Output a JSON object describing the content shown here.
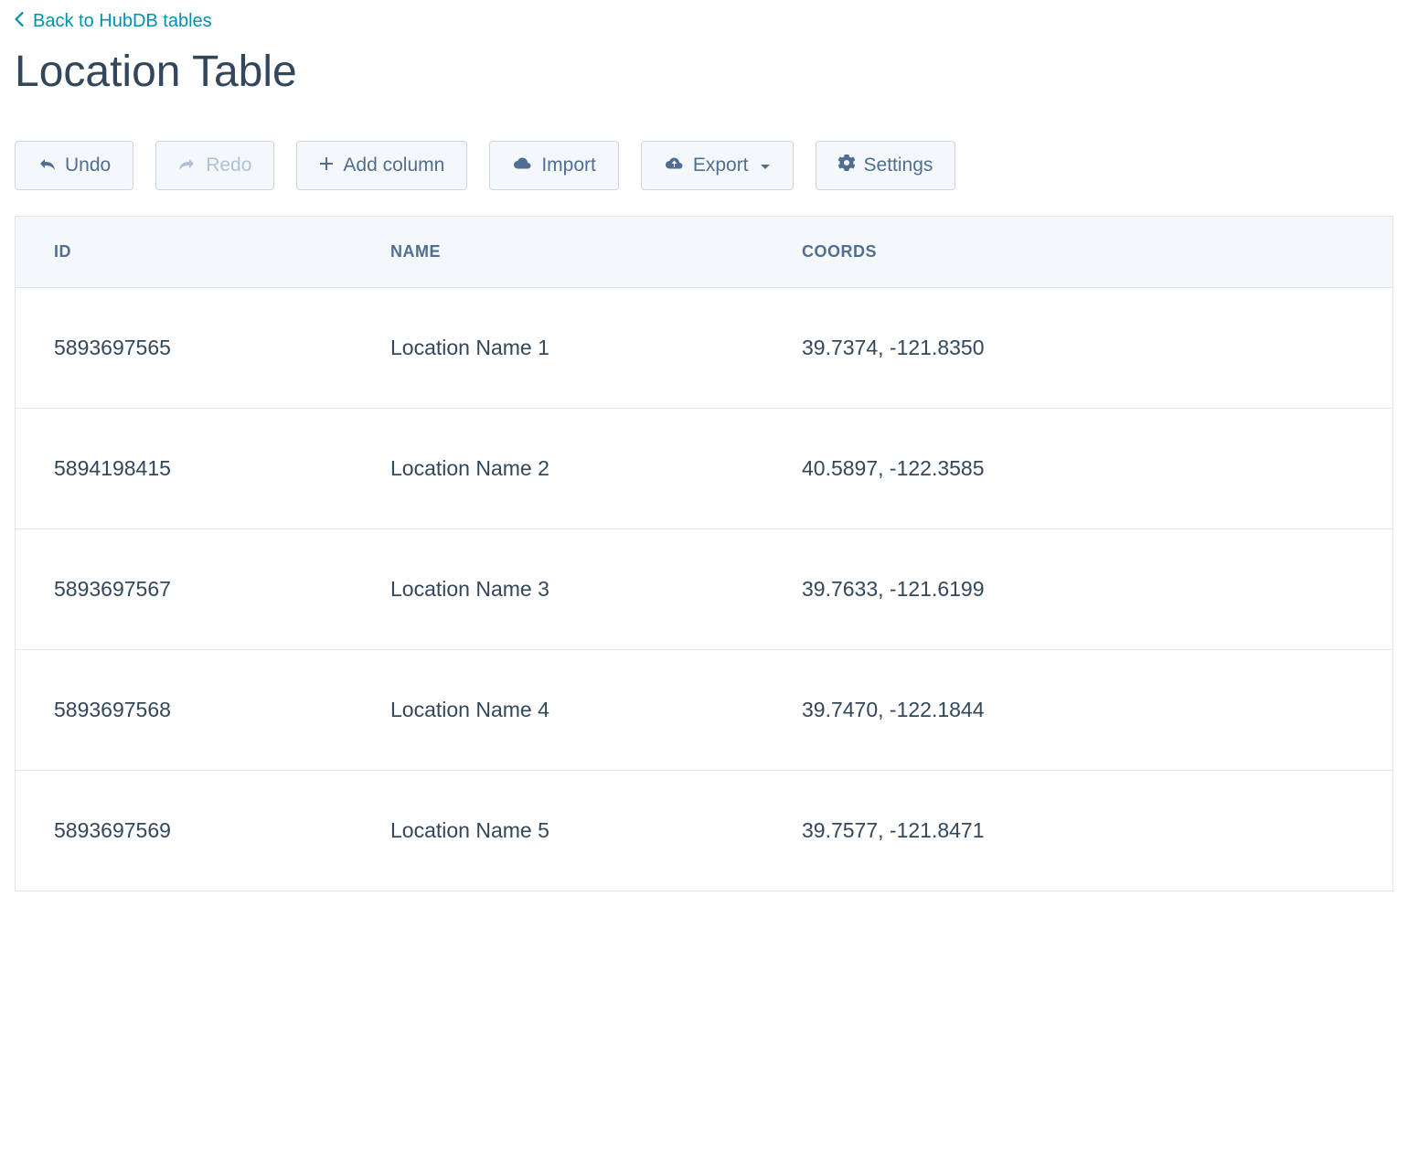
{
  "breadcrumb": {
    "back_label": "Back to HubDB tables"
  },
  "page": {
    "title": "Location Table"
  },
  "toolbar": {
    "undo_label": "Undo",
    "redo_label": "Redo",
    "redo_disabled": true,
    "add_column_label": "Add column",
    "import_label": "Import",
    "export_label": "Export",
    "settings_label": "Settings"
  },
  "table": {
    "columns": [
      "ID",
      "NAME",
      "COORDS"
    ],
    "rows": [
      {
        "id": "5893697565",
        "name": "Location Name 1",
        "coords": "39.7374, -121.8350"
      },
      {
        "id": "5894198415",
        "name": "Location Name 2",
        "coords": "40.5897, -122.3585"
      },
      {
        "id": "5893697567",
        "name": "Location Name 3",
        "coords": "39.7633, -121.6199"
      },
      {
        "id": "5893697568",
        "name": "Location Name 4",
        "coords": "39.7470, -122.1844"
      },
      {
        "id": "5893697569",
        "name": "Location Name 5",
        "coords": "39.7577, -121.8471"
      }
    ]
  },
  "colors": {
    "link": "#0091ae",
    "text_primary": "#33475b",
    "text_button": "#506e91",
    "text_disabled": "#b0c1d4",
    "button_bg": "#f5f8fa",
    "button_border": "#cbd6e2",
    "table_header_bg": "#f5f8fa",
    "table_border": "#dfe3eb",
    "background": "#ffffff"
  }
}
